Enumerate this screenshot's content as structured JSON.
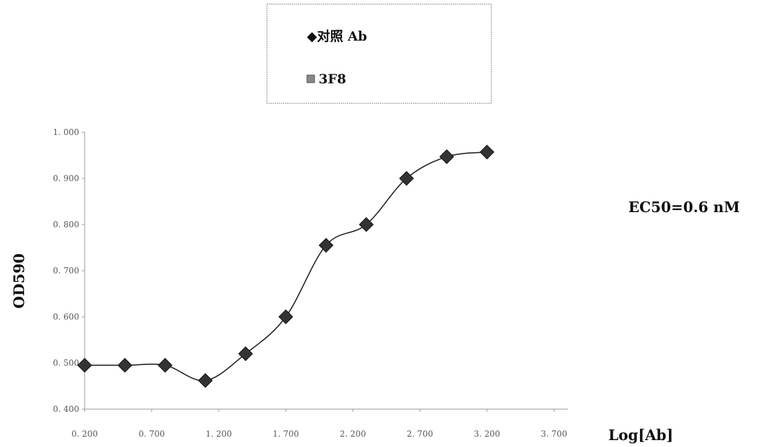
{
  "chart_data": {
    "type": "line",
    "title": "",
    "xlabel": "Log[Ab]",
    "ylabel": "OD590",
    "xlim": [
      0.2,
      3.7
    ],
    "ylim": [
      0.4,
      1.0
    ],
    "x_ticks": [
      0.2,
      0.7,
      1.2,
      1.7,
      2.2,
      2.7,
      3.2,
      3.7
    ],
    "x_tick_labels": [
      "0. 200",
      "0. 700",
      "1. 200",
      "1. 700",
      "2. 200",
      "2. 700",
      "3. 200",
      "3. 700"
    ],
    "y_ticks": [
      0.4,
      0.5,
      0.6,
      0.7,
      0.8,
      0.9,
      1.0
    ],
    "y_tick_labels": [
      "0. 400",
      "0. 500",
      "0. 600",
      "0. 700",
      "0. 800",
      "0. 900",
      "1. 000"
    ],
    "grid": false,
    "legend_position": "top-center",
    "legend": [
      {
        "label": "◆对照 Ab",
        "marker": "diamond",
        "color": "#333333"
      },
      {
        "label": "3F8",
        "marker": "square",
        "color": "#888888"
      }
    ],
    "annotation": "EC50=0.6 nM",
    "series": [
      {
        "name": "对照 Ab",
        "marker": "diamond",
        "color": "#333333",
        "x": [
          0.2,
          0.5,
          0.8,
          1.1,
          1.4,
          1.7,
          2.0,
          2.3,
          2.6,
          2.9,
          3.2
        ],
        "y": [
          0.495,
          0.495,
          0.495,
          0.462,
          0.52,
          0.6,
          0.755,
          0.8,
          0.9,
          0.947,
          0.957
        ]
      }
    ]
  }
}
